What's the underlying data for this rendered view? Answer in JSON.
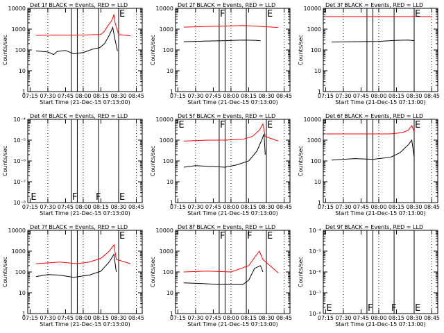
{
  "colors": {
    "events": "#000000",
    "lld": "#ff0000"
  },
  "chart_data": [
    {
      "type": "line",
      "title": "Det 1f BLACK = Events, RED = LLD",
      "ylabel": "Counts/sec",
      "xlabel": "Start Time (21-Dec-15 07:13:00)",
      "yscale": "log",
      "ylim": [
        1,
        10000
      ],
      "ytick_labels": [
        "1",
        "10",
        "100",
        "1000",
        "10000"
      ],
      "xtick_labels": [
        "07:15",
        "07:30",
        "07:45",
        "08:00",
        "08:15",
        "08:30",
        "08:45"
      ],
      "markers": [
        {
          "time": "08:30",
          "label": "E"
        }
      ],
      "series": [
        {
          "name": "RED",
          "color": "#ff0000",
          "points": [
            [
              "07:20",
              500
            ],
            [
              "07:35",
              520
            ],
            [
              "07:50",
              510
            ],
            [
              "08:00",
              520
            ],
            [
              "08:15",
              560
            ],
            [
              "08:18",
              800
            ],
            [
              "08:21",
              1500
            ],
            [
              "08:24",
              2500
            ],
            [
              "08:26",
              5000
            ],
            [
              "08:27",
              2000
            ],
            [
              "08:30",
              550
            ],
            [
              "08:40",
              480
            ]
          ]
        },
        {
          "name": "BLACK",
          "color": "#000000",
          "points": [
            [
              "07:20",
              90
            ],
            [
              "07:30",
              80
            ],
            [
              "07:35",
              60
            ],
            [
              "07:38",
              85
            ],
            [
              "07:45",
              95
            ],
            [
              "07:52",
              65
            ],
            [
              "08:00",
              75
            ],
            [
              "08:08",
              110
            ],
            [
              "08:14",
              130
            ],
            [
              "08:18",
              200
            ],
            [
              "08:22",
              500
            ],
            [
              "08:25",
              1200
            ],
            [
              "08:27",
              300
            ],
            [
              "08:29",
              90
            ]
          ]
        }
      ]
    },
    {
      "type": "line",
      "title": "Det 2f BLACK = Events, RED = LLD",
      "ylabel": "Counts/sec",
      "xlabel": "Start Time (21-Dec-15 07:13:00)",
      "yscale": "log",
      "ylim": [
        1,
        10000
      ],
      "ytick_labels": [
        "1",
        "10",
        "100",
        "1000",
        "10000"
      ],
      "xtick_labels": [
        "07:15",
        "07:30",
        "07:45",
        "08:00",
        "08:15",
        "08:30",
        "08:45"
      ],
      "markers": [
        {
          "time": "07:50",
          "label": "F"
        },
        {
          "time": "08:30",
          "label": "E"
        }
      ],
      "series": [
        {
          "name": "RED",
          "color": "#ff0000",
          "points": [
            [
              "07:20",
              1250
            ],
            [
              "07:40",
              1350
            ],
            [
              "07:55",
              1400
            ],
            [
              "08:10",
              1500
            ],
            [
              "08:20",
              1400
            ],
            [
              "08:40",
              1200
            ]
          ]
        },
        {
          "name": "BLACK",
          "color": "#000000",
          "points": [
            [
              "07:20",
              250
            ],
            [
              "07:40",
              270
            ],
            [
              "07:55",
              280
            ],
            [
              "08:10",
              300
            ],
            [
              "08:20",
              290
            ],
            [
              "08:25",
              280
            ]
          ]
        }
      ]
    },
    {
      "type": "line",
      "title": "Det 3f BLACK = Events, RED = LLD",
      "ylabel": "Counts/sec",
      "xlabel": "Start Time (21-Dec-15 07:13:00)",
      "yscale": "log",
      "ylim": [
        1,
        10000
      ],
      "ytick_labels": [
        "1",
        "10",
        "100",
        "1000",
        "10000"
      ],
      "xtick_labels": [
        "07:15",
        "07:30",
        "07:45",
        "08:00",
        "08:15",
        "08:30",
        "08:45"
      ],
      "markers": [
        {
          "time": "08:30",
          "label": "E"
        }
      ],
      "series": [
        {
          "name": "RED",
          "color": "#ff0000",
          "points": [
            [
              "07:15",
              4000
            ],
            [
              "08:45",
              4000
            ]
          ]
        },
        {
          "name": "BLACK",
          "color": "#000000",
          "points": [
            [
              "07:20",
              240
            ],
            [
              "07:40",
              250
            ],
            [
              "08:00",
              260
            ],
            [
              "08:15",
              290
            ],
            [
              "08:25",
              300
            ],
            [
              "08:30",
              280
            ]
          ]
        }
      ]
    },
    {
      "type": "line",
      "title": "Det 4f BLACK = Events, RED = LLD",
      "ylabel": "Counts/sec",
      "xlabel": "Start Time (21-Dec-15 07:13:00)",
      "yscale": "log",
      "ylim": [
        1e-08,
        0.0001
      ],
      "ytick_labels": [
        "10⁻⁸",
        "10⁻⁷",
        "10⁻⁶",
        "10⁻⁵",
        "10⁻⁴"
      ],
      "xtick_labels": [
        "07:15",
        "07:30",
        "07:45",
        "08:00",
        "08:15",
        "08:30",
        "08:45"
      ],
      "markers": [
        {
          "time": "07:15",
          "label": "E"
        },
        {
          "time": "07:50",
          "label": "F"
        },
        {
          "time": "08:10",
          "label": "F"
        },
        {
          "time": "08:30",
          "label": "E"
        }
      ],
      "series": []
    },
    {
      "type": "line",
      "title": "Det 5f BLACK = Events, RED = LLD",
      "ylabel": "Counts/sec",
      "xlabel": "Start Time (21-Dec-15 07:13:00)",
      "yscale": "log",
      "ylim": [
        1,
        10000
      ],
      "ytick_labels": [
        "1",
        "10",
        "100",
        "1000",
        "10000"
      ],
      "xtick_labels": [
        "07:15",
        "07:30",
        "07:45",
        "08:00",
        "08:15",
        "08:30",
        "08:45"
      ],
      "markers": [
        {
          "time": "07:15",
          "label": "E"
        },
        {
          "time": "07:50",
          "label": "F"
        },
        {
          "time": "08:30",
          "label": "E"
        }
      ],
      "series": [
        {
          "name": "RED",
          "color": "#ff0000",
          "points": [
            [
              "07:20",
              900
            ],
            [
              "07:40",
              1000
            ],
            [
              "07:55",
              1000
            ],
            [
              "08:10",
              1100
            ],
            [
              "08:18",
              1500
            ],
            [
              "08:24",
              3000
            ],
            [
              "08:27",
              6000
            ],
            [
              "08:29",
              1500
            ],
            [
              "08:40",
              900
            ]
          ]
        },
        {
          "name": "BLACK",
          "color": "#000000",
          "points": [
            [
              "07:20",
              50
            ],
            [
              "07:30",
              60
            ],
            [
              "07:40",
              55
            ],
            [
              "07:55",
              50
            ],
            [
              "08:05",
              65
            ],
            [
              "08:15",
              100
            ],
            [
              "08:22",
              300
            ],
            [
              "08:26",
              1000
            ],
            [
              "08:28",
              2000
            ],
            [
              "08:29",
              200
            ]
          ]
        }
      ]
    },
    {
      "type": "line",
      "title": "Det 6f BLACK = Events, RED = LLD",
      "ylabel": "Counts/sec",
      "xlabel": "Start Time (21-Dec-15 07:13:00)",
      "yscale": "log",
      "ylim": [
        1,
        10000
      ],
      "ytick_labels": [
        "1",
        "10",
        "100",
        "1000",
        "10000"
      ],
      "xtick_labels": [
        "07:15",
        "07:30",
        "07:45",
        "08:00",
        "08:15",
        "08:30",
        "08:45"
      ],
      "markers": [
        {
          "time": "08:30",
          "label": "E"
        }
      ],
      "series": [
        {
          "name": "RED",
          "color": "#ff0000",
          "points": [
            [
              "07:15",
              2000
            ],
            [
              "08:10",
              2000
            ],
            [
              "08:20",
              2300
            ],
            [
              "08:25",
              3000
            ],
            [
              "08:28",
              5000
            ],
            [
              "08:30",
              2500
            ]
          ]
        },
        {
          "name": "BLACK",
          "color": "#000000",
          "points": [
            [
              "07:20",
              110
            ],
            [
              "07:40",
              130
            ],
            [
              "07:55",
              120
            ],
            [
              "08:10",
              150
            ],
            [
              "08:18",
              250
            ],
            [
              "08:25",
              600
            ],
            [
              "08:28",
              1000
            ],
            [
              "08:30",
              150
            ]
          ]
        }
      ]
    },
    {
      "type": "line",
      "title": "Det 7f BLACK = Events, RED = LLD",
      "ylabel": "Counts/sec",
      "xlabel": "Start Time (21-Dec-15 07:13:00)",
      "yscale": "log",
      "ylim": [
        1,
        10000
      ],
      "ytick_labels": [
        "1",
        "10",
        "100",
        "1000",
        "10000"
      ],
      "xtick_labels": [
        "07:15",
        "07:30",
        "07:45",
        "08:00",
        "08:15",
        "08:30",
        "08:45"
      ],
      "markers": [
        {
          "time": "08:30",
          "label": "E"
        }
      ],
      "series": [
        {
          "name": "RED",
          "color": "#ff0000",
          "points": [
            [
              "07:20",
              250
            ],
            [
              "07:40",
              300
            ],
            [
              "07:55",
              250
            ],
            [
              "08:05",
              300
            ],
            [
              "08:15",
              450
            ],
            [
              "08:22",
              1000
            ],
            [
              "08:26",
              2000
            ],
            [
              "08:28",
              400
            ],
            [
              "08:40",
              250
            ]
          ]
        },
        {
          "name": "BLACK",
          "color": "#000000",
          "points": [
            [
              "07:20",
              60
            ],
            [
              "07:30",
              75
            ],
            [
              "07:40",
              70
            ],
            [
              "07:52",
              55
            ],
            [
              "08:05",
              70
            ],
            [
              "08:15",
              110
            ],
            [
              "08:22",
              300
            ],
            [
              "08:26",
              700
            ],
            [
              "08:28",
              100
            ]
          ]
        }
      ]
    },
    {
      "type": "line",
      "title": "Det 8f BLACK = Events, RED = LLD",
      "ylabel": "Counts/sec",
      "xlabel": "Start Time (21-Dec-15 07:13:00)",
      "yscale": "log",
      "ylim": [
        1,
        10000
      ],
      "ytick_labels": [
        "1",
        "10",
        "100",
        "1000",
        "10000"
      ],
      "xtick_labels": [
        "07:15",
        "07:30",
        "07:45",
        "08:00",
        "08:15",
        "08:30",
        "08:45"
      ],
      "markers": [
        {
          "time": "07:50",
          "label": "F"
        },
        {
          "time": "08:13",
          "label": "F"
        },
        {
          "time": "08:30",
          "label": "E"
        }
      ],
      "series": [
        {
          "name": "RED",
          "color": "#ff0000",
          "points": [
            [
              "07:20",
              100
            ],
            [
              "07:40",
              110
            ],
            [
              "08:00",
              100
            ],
            [
              "08:15",
              200
            ],
            [
              "08:20",
              500
            ],
            [
              "08:24",
              1000
            ],
            [
              "08:27",
              400
            ],
            [
              "08:40",
              90
            ]
          ]
        },
        {
          "name": "BLACK",
          "color": "#000000",
          "points": [
            [
              "07:20",
              30
            ],
            [
              "07:35",
              28
            ],
            [
              "07:50",
              25
            ],
            [
              "08:10",
              25
            ],
            [
              "08:15",
              40
            ],
            [
              "08:20",
              150
            ],
            [
              "08:25",
              200
            ],
            [
              "08:27",
              100
            ]
          ]
        }
      ]
    },
    {
      "type": "line",
      "title": "Det 9f BLACK = Events, RED = LLD",
      "ylabel": "Counts/sec",
      "xlabel": "Start Time (21-Dec-15 07:13:00)",
      "yscale": "log",
      "ylim": [
        1e-08,
        0.0001
      ],
      "ytick_labels": [
        "10⁻⁸",
        "10⁻⁷",
        "10⁻⁶",
        "10⁻⁵",
        "10⁻⁴"
      ],
      "xtick_labels": [
        "07:15",
        "07:30",
        "07:45",
        "08:00",
        "08:15",
        "08:30",
        "08:45"
      ],
      "markers": [
        {
          "time": "07:15",
          "label": "E"
        },
        {
          "time": "07:50",
          "label": "F"
        },
        {
          "time": "08:10",
          "label": "F"
        },
        {
          "time": "08:30",
          "label": "E"
        }
      ],
      "series": []
    }
  ]
}
